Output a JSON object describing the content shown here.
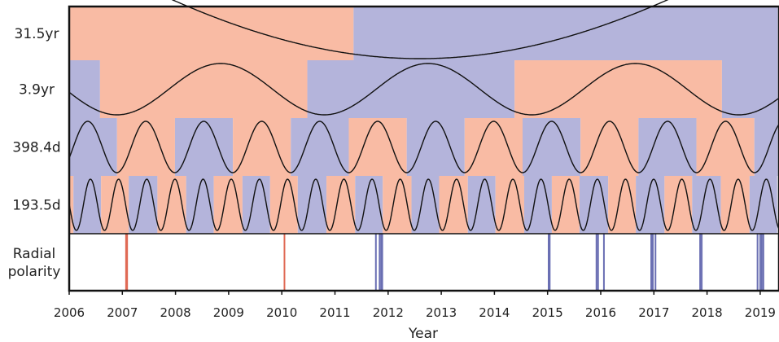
{
  "chart_data": {
    "type": "line",
    "xlabel": "Year",
    "xlim": [
      2006,
      2019.33
    ],
    "x_ticks": [
      "2006",
      "2007",
      "2008",
      "2009",
      "2010",
      "2011",
      "2012",
      "2013",
      "2014",
      "2015",
      "2016",
      "2017",
      "2018",
      "2019"
    ],
    "colors": {
      "positive": "#f9bba4",
      "negative": "#b4b4db",
      "curve": "#111111",
      "pos_event": "#e06a55",
      "neg_event": "#6a6fb3"
    },
    "panels": [
      {
        "label": "31.5yr",
        "period_years": 31.5,
        "curve_min_year": 2012.6,
        "segments": [
          {
            "start": 2006.0,
            "end": 2011.35,
            "phase": "positive"
          },
          {
            "start": 2011.35,
            "end": 2019.33,
            "phase": "negative"
          }
        ]
      },
      {
        "label": "3.9yr",
        "period_years": 3.9,
        "curve_min_year": 2008.85,
        "segments": [
          {
            "start": 2006.0,
            "end": 2006.58,
            "phase": "negative"
          },
          {
            "start": 2006.58,
            "end": 2010.48,
            "phase": "positive"
          },
          {
            "start": 2010.48,
            "end": 2014.38,
            "phase": "negative"
          },
          {
            "start": 2014.38,
            "end": 2018.28,
            "phase": "positive"
          },
          {
            "start": 2018.28,
            "end": 2019.33,
            "phase": "negative"
          }
        ]
      },
      {
        "label": "398.4d",
        "period_years": 1.0908,
        "curve_min_year": 2006.35,
        "segments": [
          {
            "start": 2006.0,
            "end": 2006.9,
            "phase": "negative"
          },
          {
            "start": 2006.9,
            "end": 2007.99,
            "phase": "positive"
          },
          {
            "start": 2007.99,
            "end": 2009.08,
            "phase": "negative"
          },
          {
            "start": 2009.08,
            "end": 2010.17,
            "phase": "positive"
          },
          {
            "start": 2010.17,
            "end": 2011.26,
            "phase": "negative"
          },
          {
            "start": 2011.26,
            "end": 2012.35,
            "phase": "positive"
          },
          {
            "start": 2012.35,
            "end": 2013.44,
            "phase": "negative"
          },
          {
            "start": 2013.44,
            "end": 2014.53,
            "phase": "positive"
          },
          {
            "start": 2014.53,
            "end": 2015.62,
            "phase": "negative"
          },
          {
            "start": 2015.62,
            "end": 2016.71,
            "phase": "positive"
          },
          {
            "start": 2016.71,
            "end": 2017.8,
            "phase": "negative"
          },
          {
            "start": 2017.8,
            "end": 2018.89,
            "phase": "positive"
          },
          {
            "start": 2018.89,
            "end": 2019.33,
            "phase": "negative"
          }
        ]
      },
      {
        "label": "193.5d",
        "period_years": 0.5298,
        "curve_min_year": 2006.4,
        "segments": [
          {
            "start": 2006.0,
            "end": 2006.08,
            "phase": "positive"
          },
          {
            "start": 2006.08,
            "end": 2006.6,
            "phase": "negative"
          },
          {
            "start": 2006.6,
            "end": 2007.12,
            "phase": "positive"
          },
          {
            "start": 2007.12,
            "end": 2007.66,
            "phase": "negative"
          },
          {
            "start": 2007.66,
            "end": 2008.2,
            "phase": "positive"
          },
          {
            "start": 2008.2,
            "end": 2008.72,
            "phase": "negative"
          },
          {
            "start": 2008.72,
            "end": 2009.26,
            "phase": "positive"
          },
          {
            "start": 2009.26,
            "end": 2009.78,
            "phase": "negative"
          },
          {
            "start": 2009.78,
            "end": 2010.3,
            "phase": "positive"
          },
          {
            "start": 2010.3,
            "end": 2010.84,
            "phase": "negative"
          },
          {
            "start": 2010.84,
            "end": 2011.38,
            "phase": "positive"
          },
          {
            "start": 2011.38,
            "end": 2011.9,
            "phase": "negative"
          },
          {
            "start": 2011.9,
            "end": 2012.44,
            "phase": "positive"
          },
          {
            "start": 2012.44,
            "end": 2012.96,
            "phase": "negative"
          },
          {
            "start": 2012.96,
            "end": 2013.5,
            "phase": "positive"
          },
          {
            "start": 2013.5,
            "end": 2014.02,
            "phase": "negative"
          },
          {
            "start": 2014.02,
            "end": 2014.56,
            "phase": "positive"
          },
          {
            "start": 2014.56,
            "end": 2015.08,
            "phase": "negative"
          },
          {
            "start": 2015.08,
            "end": 2015.6,
            "phase": "positive"
          },
          {
            "start": 2015.6,
            "end": 2016.14,
            "phase": "negative"
          },
          {
            "start": 2016.14,
            "end": 2016.66,
            "phase": "positive"
          },
          {
            "start": 2016.66,
            "end": 2017.2,
            "phase": "negative"
          },
          {
            "start": 2017.2,
            "end": 2017.72,
            "phase": "positive"
          },
          {
            "start": 2017.72,
            "end": 2018.26,
            "phase": "negative"
          },
          {
            "start": 2018.26,
            "end": 2018.8,
            "phase": "positive"
          },
          {
            "start": 2018.8,
            "end": 2019.32,
            "phase": "negative"
          }
        ]
      }
    ],
    "polarity_panel": {
      "label_line1": "Radial",
      "label_line2": "polarity",
      "events": [
        {
          "year": 2007.07,
          "polarity": "positive"
        },
        {
          "year": 2007.09,
          "polarity": "positive"
        },
        {
          "year": 2010.05,
          "polarity": "positive"
        },
        {
          "year": 2011.77,
          "polarity": "negative"
        },
        {
          "year": 2011.84,
          "polarity": "negative"
        },
        {
          "year": 2011.87,
          "polarity": "negative"
        },
        {
          "year": 2011.89,
          "polarity": "negative"
        },
        {
          "year": 2015.02,
          "polarity": "negative"
        },
        {
          "year": 2015.04,
          "polarity": "negative"
        },
        {
          "year": 2015.92,
          "polarity": "negative"
        },
        {
          "year": 2015.95,
          "polarity": "negative"
        },
        {
          "year": 2016.06,
          "polarity": "negative"
        },
        {
          "year": 2016.95,
          "polarity": "negative"
        },
        {
          "year": 2016.98,
          "polarity": "negative"
        },
        {
          "year": 2017.03,
          "polarity": "negative"
        },
        {
          "year": 2017.87,
          "polarity": "negative"
        },
        {
          "year": 2017.9,
          "polarity": "negative"
        },
        {
          "year": 2018.95,
          "polarity": "negative"
        },
        {
          "year": 2019.0,
          "polarity": "negative"
        },
        {
          "year": 2019.03,
          "polarity": "negative"
        },
        {
          "year": 2019.06,
          "polarity": "negative"
        }
      ]
    }
  }
}
